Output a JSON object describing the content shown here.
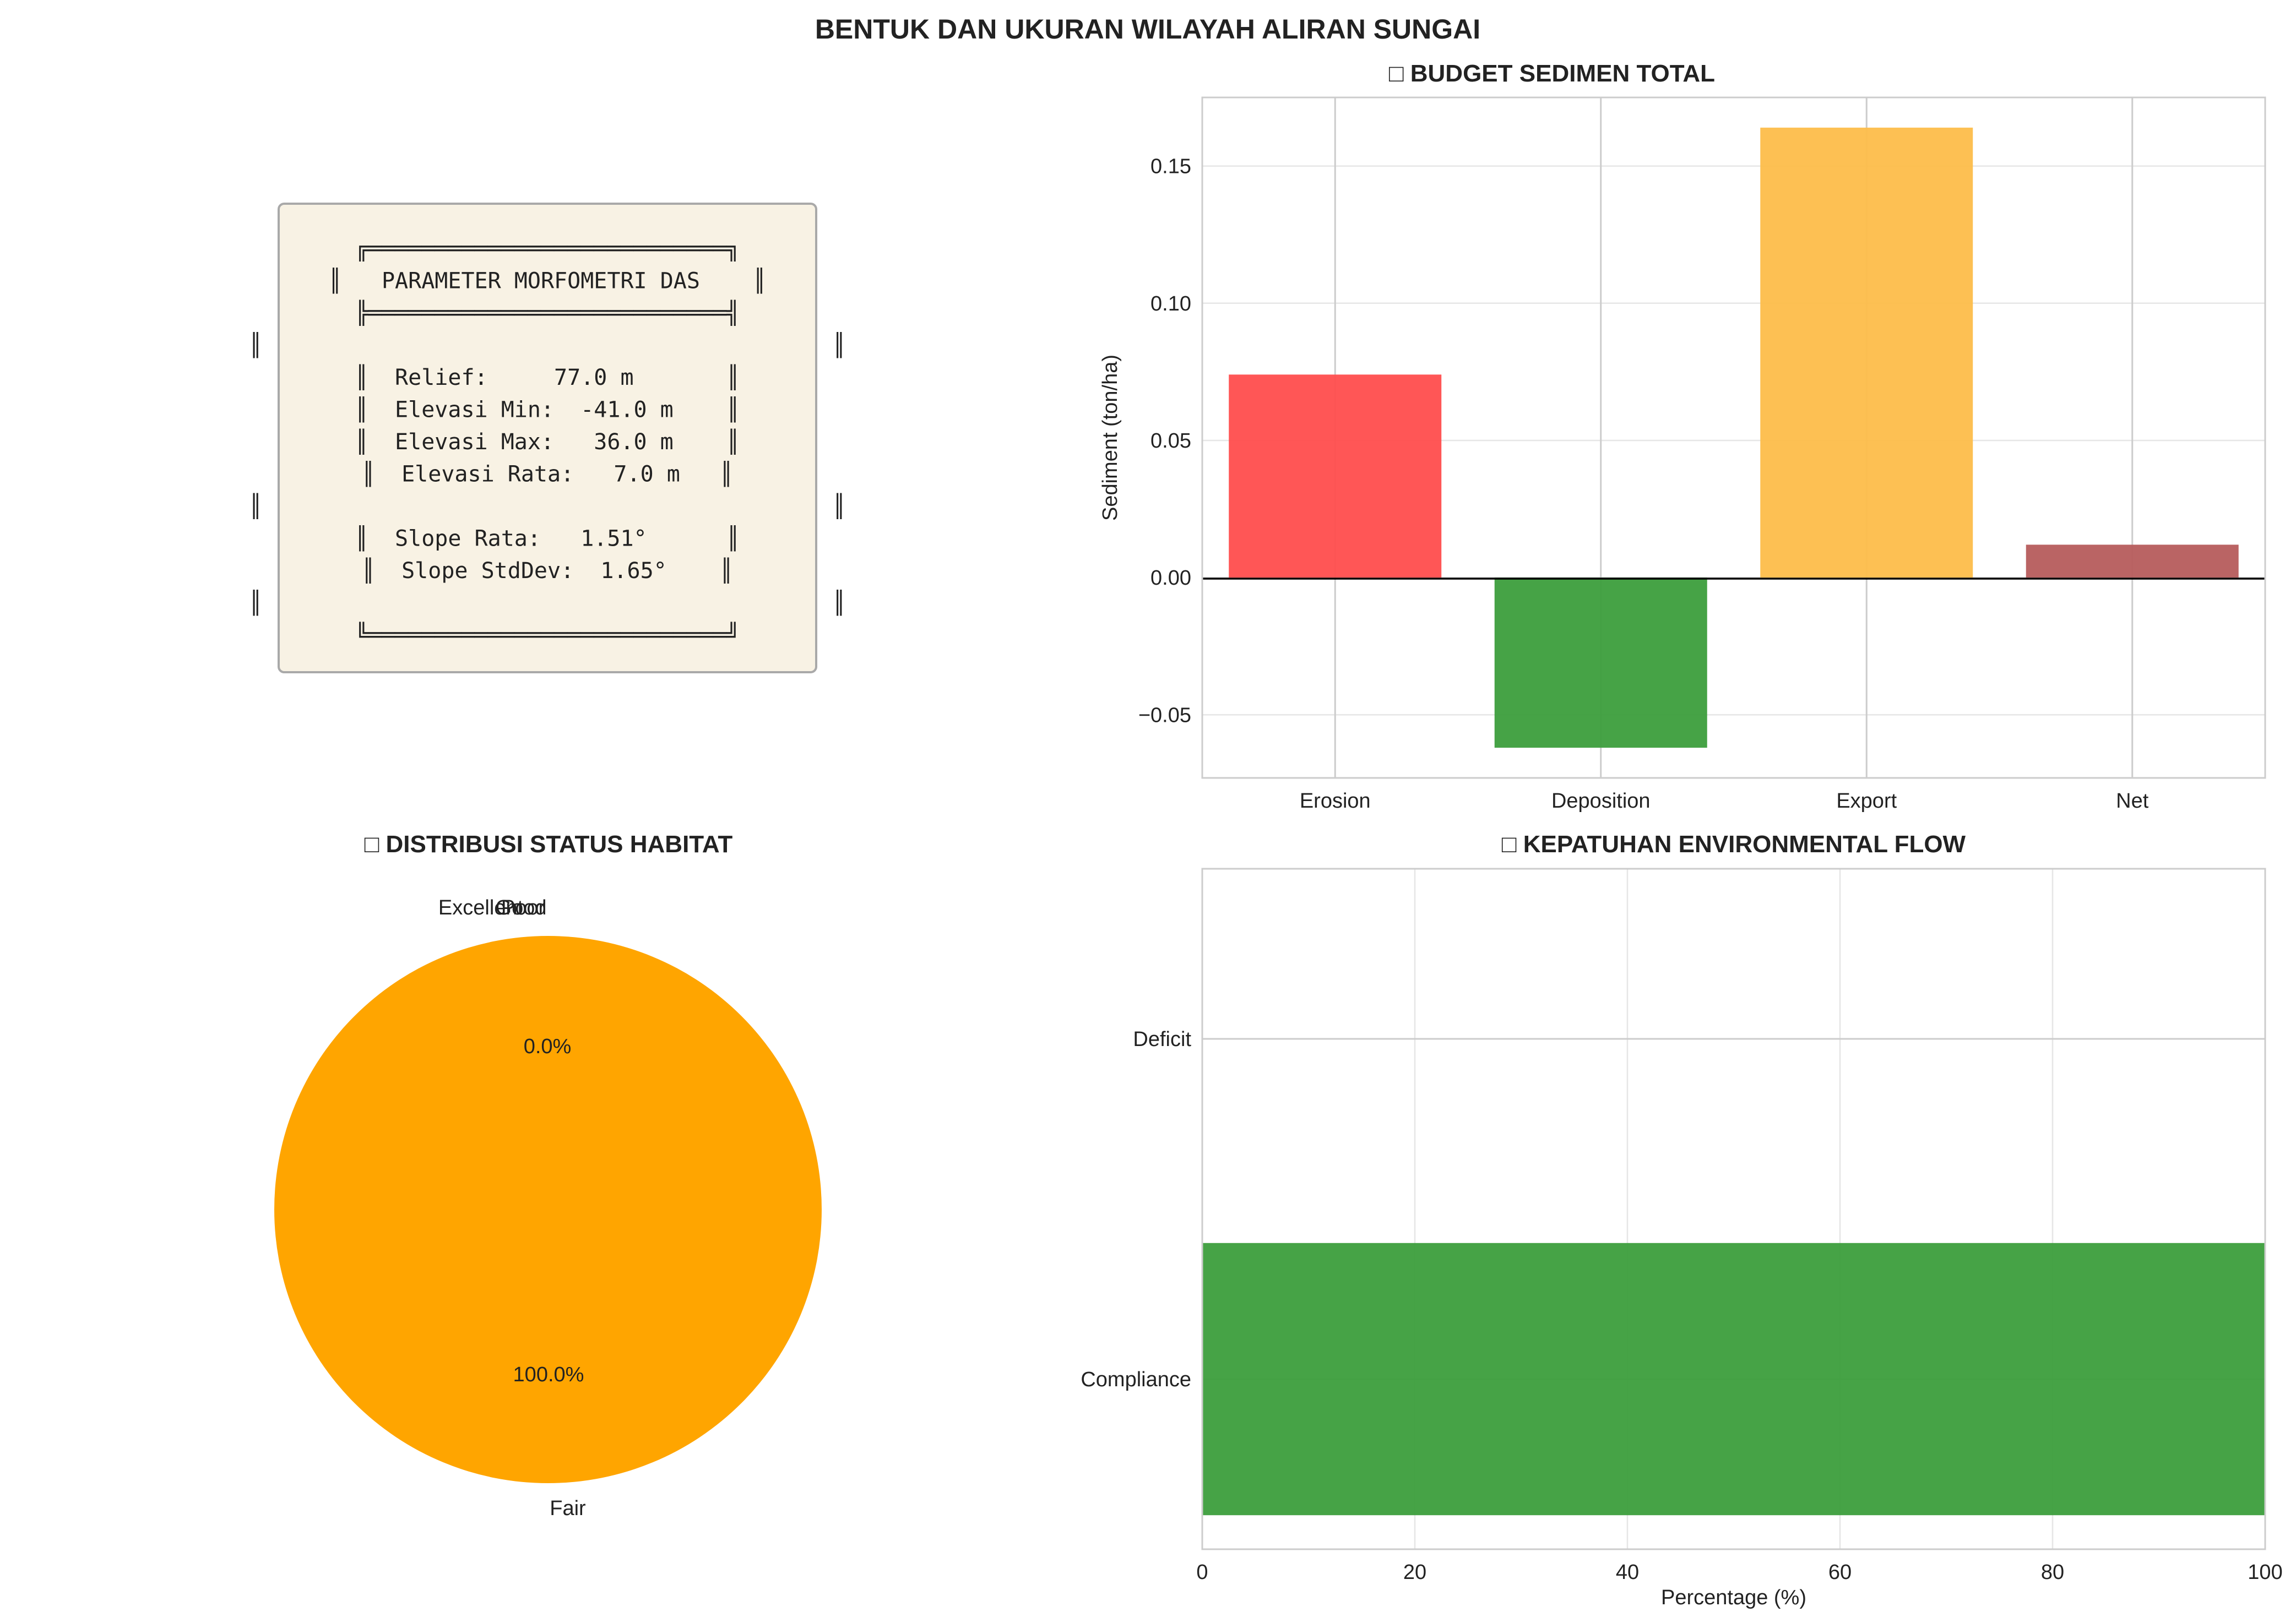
{
  "figure": {
    "title": "BENTUK DAN UKURAN WILAYAH ALIRAN SUNGAI",
    "colors": {
      "bg": "#ffffff",
      "axes_edge": "#cccccc",
      "grid": "#e6e6e6",
      "text": "#222222"
    }
  },
  "parameter_box": {
    "bg_color": "#f8f2e4",
    "edge_color": "#a9a9a9",
    "lines": [
      "╔═══════════════════════════╗",
      "║   PARAMETER MORFOMETRI DAS    ║",
      "╠═══════════════════════════╣",
      "║                                           ║",
      "║  Relief:     77.0 m       ║",
      "║  Elevasi Min:  -41.0 m    ║",
      "║  Elevasi Max:   36.0 m    ║",
      "║  Elevasi Rata:   7.0 m   ║",
      "║                                           ║",
      "║  Slope Rata:   1.51°      ║",
      "║  Slope StdDev:  1.65°    ║",
      "║                                           ║",
      "╚═══════════════════════════╝"
    ]
  },
  "chart_data": [
    {
      "id": "sediment",
      "type": "bar",
      "title": "□ BUDGET SEDIMEN TOTAL",
      "categories": [
        "Erosion",
        "Deposition",
        "Export",
        "Net"
      ],
      "values": [
        0.074,
        -0.062,
        0.164,
        0.012
      ],
      "colors": [
        "#ff4d4d",
        "#3c9e3c",
        "#fdbd4a",
        "#b65c5c"
      ],
      "xlabel": "",
      "ylabel": "Sediment (ton/ha)",
      "ylim": [
        -0.073,
        0.175
      ],
      "yticks": [
        -0.05,
        0.0,
        0.05,
        0.1,
        0.15
      ],
      "ytick_labels": [
        "−0.05",
        "0.00",
        "0.05",
        "0.10",
        "0.15"
      ],
      "grid": true,
      "zero_line": true
    },
    {
      "id": "habitat",
      "type": "pie",
      "title": "□ DISTRIBUSI STATUS HABITAT",
      "labels": [
        "Excellent",
        "Good",
        "Fair",
        "Poor"
      ],
      "values": [
        0,
        0,
        100,
        0
      ],
      "colors": [
        "#2e8b57",
        "#8bc34a",
        "#ffa500",
        "#ff4d4d"
      ],
      "pct_labels": [
        "0.0%",
        "100.0%"
      ]
    },
    {
      "id": "eflow",
      "type": "bar",
      "orientation": "horizontal",
      "title": "□ KEPATUHAN ENVIRONMENTAL FLOW",
      "categories": [
        "Compliance",
        "Deficit"
      ],
      "values": [
        100,
        0
      ],
      "colors": [
        "#3c9e3c",
        "#ff4d4d"
      ],
      "xlabel": "Percentage (%)",
      "ylabel": "",
      "xlim": [
        0,
        100
      ],
      "xticks": [
        0,
        20,
        40,
        60,
        80,
        100
      ],
      "grid": true
    }
  ]
}
